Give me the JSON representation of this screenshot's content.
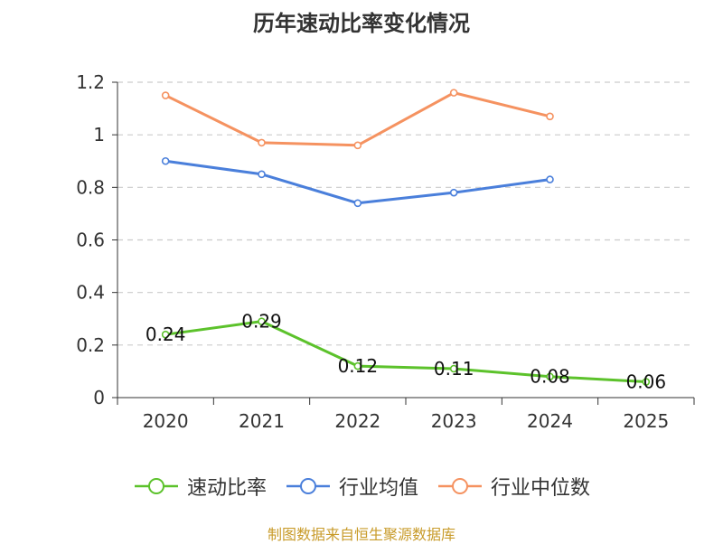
{
  "chart_data": {
    "type": "line",
    "title": "历年速动比率变化情况",
    "categories": [
      "2020",
      "2021",
      "2022",
      "2023",
      "2024",
      "2025"
    ],
    "yticks": [
      "0",
      "0.2",
      "0.4",
      "0.6",
      "0.8",
      "1",
      "1.2"
    ],
    "ylim": [
      0,
      1.2
    ],
    "grid": true,
    "legend_position": "bottom",
    "series": [
      {
        "name": "速动比率",
        "color": "#5cc22b",
        "values": [
          0.24,
          0.29,
          0.12,
          0.11,
          0.08,
          0.06
        ],
        "labels": [
          "0.24",
          "0.29",
          "0.12",
          "0.11",
          "0.08",
          "0.06"
        ]
      },
      {
        "name": "行业均值",
        "color": "#4a7fdb",
        "values": [
          0.9,
          0.85,
          0.74,
          0.78,
          0.83,
          null
        ]
      },
      {
        "name": "行业中位数",
        "color": "#f59260",
        "values": [
          1.15,
          0.97,
          0.96,
          1.16,
          1.07,
          null
        ]
      }
    ]
  },
  "source": "制图数据来自恒生聚源数据库"
}
